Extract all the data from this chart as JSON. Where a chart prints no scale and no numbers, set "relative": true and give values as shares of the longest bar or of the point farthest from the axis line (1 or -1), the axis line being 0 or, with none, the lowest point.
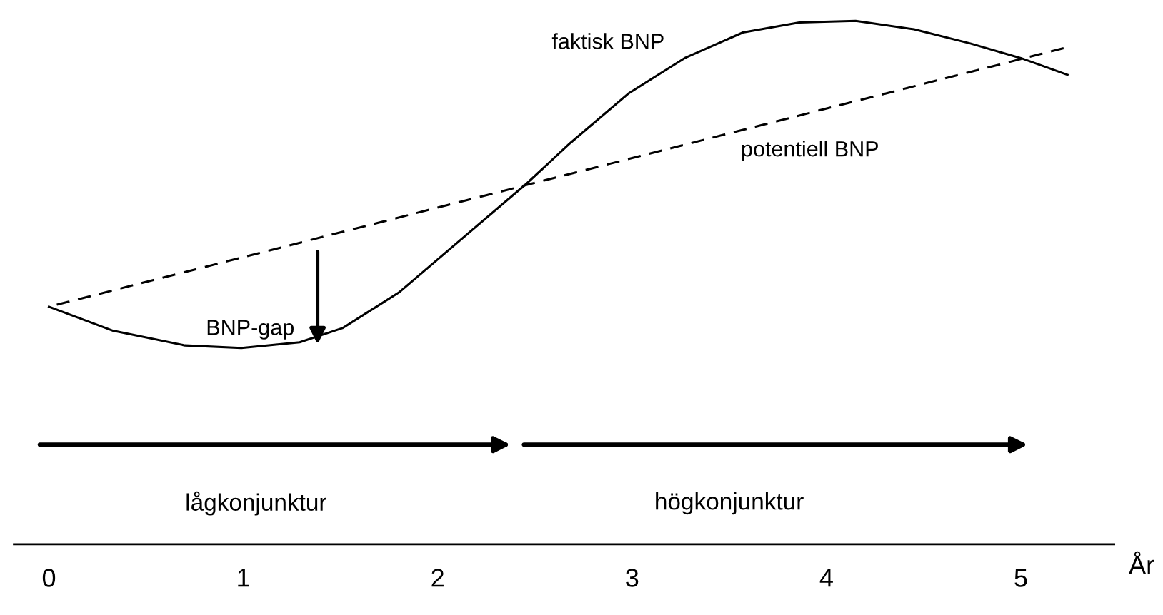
{
  "chart_data": {
    "type": "line",
    "relative": true,
    "xlabel": "År",
    "xlim": [
      -0.18,
      5.48
    ],
    "xticks": [
      0,
      1,
      2,
      3,
      4,
      5
    ],
    "grid": false,
    "legend": false,
    "marker": "none",
    "series": [
      {
        "name": "faktisk BNP",
        "color": "#000000",
        "line_style": "solid",
        "x": [
          0,
          0.33,
          0.7,
          0.99,
          1.29,
          1.51,
          1.8,
          2.1,
          2.46,
          2.68,
          2.98,
          3.27,
          3.57,
          3.86,
          4.15,
          4.45,
          4.74,
          5.0,
          5.24
        ],
        "values": [
          0.454,
          0.408,
          0.38,
          0.375,
          0.386,
          0.413,
          0.481,
          0.576,
          0.69,
          0.766,
          0.861,
          0.929,
          0.978,
          0.997,
          1.0,
          0.984,
          0.957,
          0.929,
          0.897
        ]
      },
      {
        "name": "potentiell BNP",
        "color": "#000000",
        "line_style": "dashed",
        "x": [
          0,
          5.22
        ],
        "values": [
          0.454,
          0.948
        ]
      }
    ],
    "annotations": [
      "BNP-gap",
      "lågkonjunktur",
      "högkonjunktur"
    ]
  }
}
